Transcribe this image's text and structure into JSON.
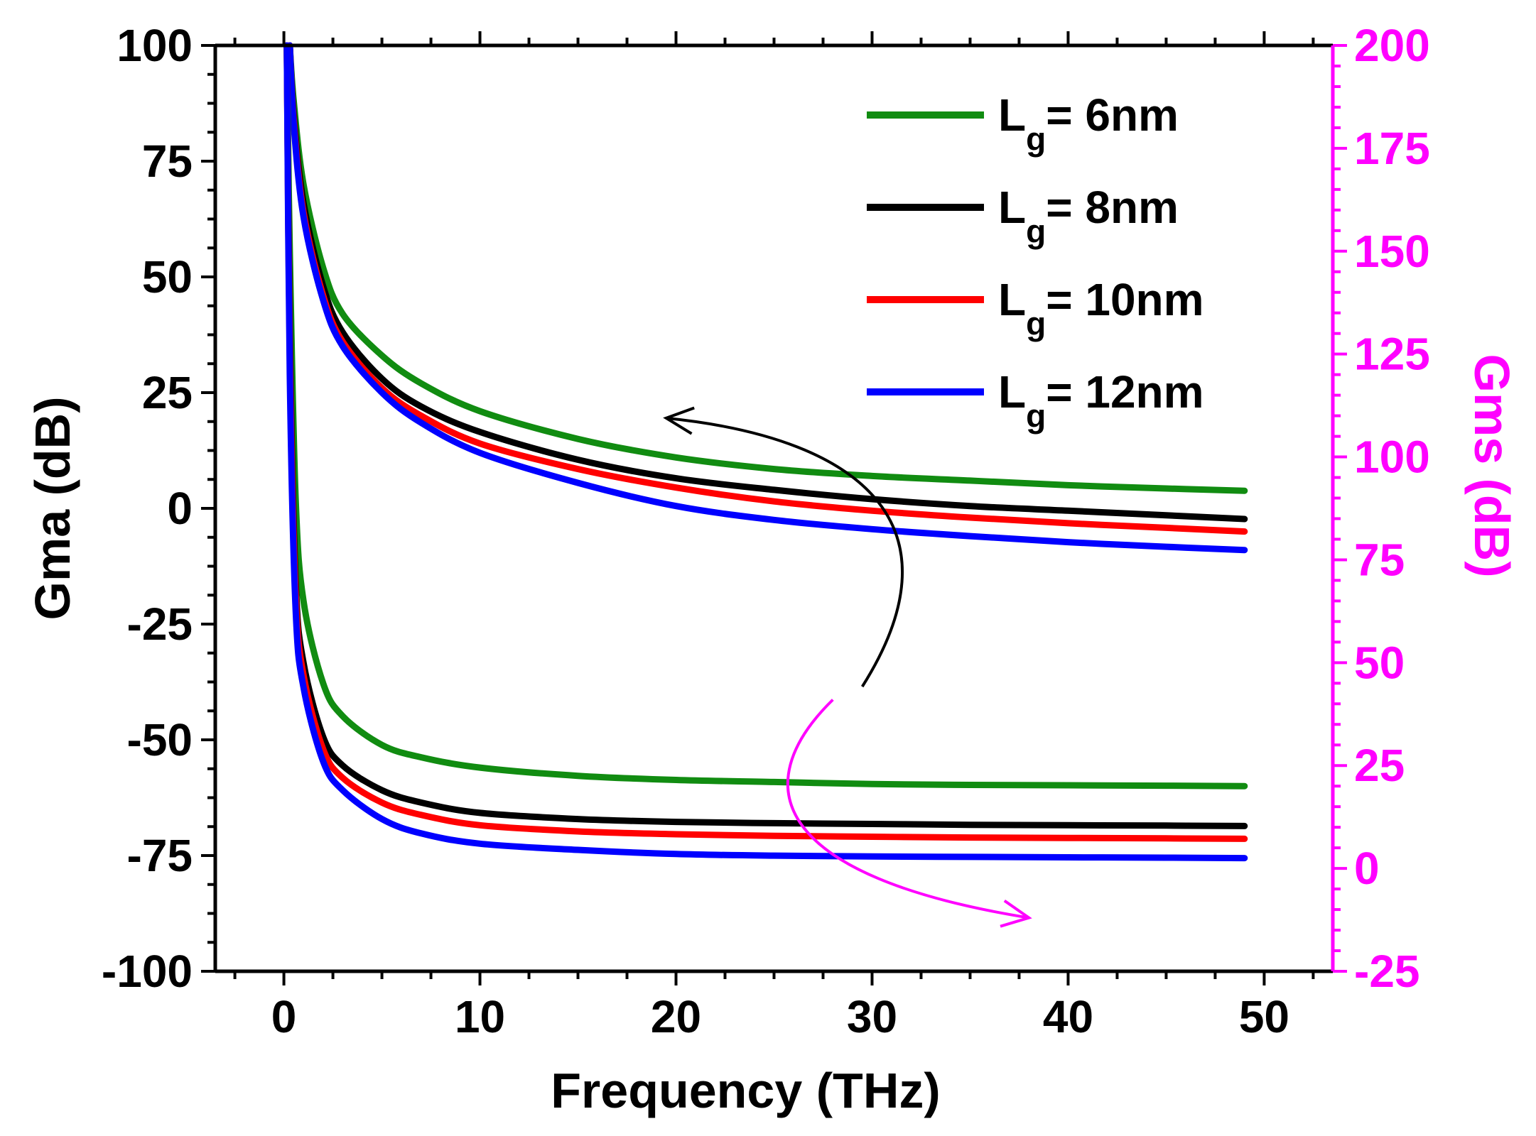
{
  "chart_data": {
    "type": "line",
    "xlabel": "Frequency (THz)",
    "ylabel_left": "Gma (dB)",
    "ylabel_right": "Gms (dB)",
    "xlim": [
      -3.5,
      53.5
    ],
    "ylim_left": [
      -100,
      100
    ],
    "ylim_right": [
      -25,
      200
    ],
    "x_ticks": [
      0,
      10,
      20,
      30,
      40,
      50
    ],
    "y_left_ticks": [
      100,
      75,
      50,
      25,
      0,
      -25,
      -50,
      -75,
      -100
    ],
    "y_right_ticks": [
      200,
      175,
      150,
      125,
      100,
      75,
      50,
      25,
      0,
      -25
    ],
    "grid": false,
    "legend_position": "top-right",
    "colors": {
      "left_axis": "#000000",
      "right_axis": "#ff00ff",
      "gma_arrow": "#000000",
      "gms_arrow": "#ff00ff"
    },
    "legend": [
      {
        "prefix": "L",
        "sub": "g",
        "suffix": "= 6nm",
        "color": "#118c11"
      },
      {
        "prefix": "L",
        "sub": "g",
        "suffix": "= 8nm",
        "color": "#000000"
      },
      {
        "prefix": "L",
        "sub": "g",
        "suffix": "= 10nm",
        "color": "#ff0000"
      },
      {
        "prefix": "L",
        "sub": "g",
        "suffix": "= 12nm",
        "color": "#0000ff"
      }
    ],
    "series": [
      {
        "name": "L_g= 6nm",
        "axis": "left",
        "group": "Gma",
        "color": "#118c11",
        "x": [
          0.3,
          0.5,
          1,
          2,
          3,
          5,
          7,
          10,
          15,
          20,
          25,
          30,
          35,
          40,
          45,
          49
        ],
        "y": [
          100,
          88,
          70,
          52,
          42,
          33,
          27,
          21,
          15,
          11,
          8.5,
          7,
          6,
          5,
          4.3,
          3.8
        ]
      },
      {
        "name": "L_g= 8nm",
        "axis": "left",
        "group": "Gma",
        "color": "#000000",
        "x": [
          0.3,
          0.5,
          1,
          2,
          3,
          5,
          7,
          10,
          15,
          20,
          25,
          30,
          35,
          40,
          45,
          49
        ],
        "y": [
          100,
          85,
          66,
          48,
          38,
          28,
          22,
          16.5,
          10.5,
          6.5,
          4,
          2,
          0.5,
          -0.5,
          -1.5,
          -2.3
        ]
      },
      {
        "name": "L_g= 10nm",
        "axis": "left",
        "group": "Gma",
        "color": "#ff0000",
        "x": [
          0.3,
          0.5,
          1,
          2,
          3,
          5,
          7,
          10,
          15,
          20,
          25,
          30,
          35,
          40,
          45,
          49
        ],
        "y": [
          100,
          84,
          64,
          46,
          36,
          26,
          20,
          14,
          8.5,
          4.5,
          1.5,
          -0.5,
          -2,
          -3.2,
          -4.2,
          -5
        ]
      },
      {
        "name": "L_g= 12nm",
        "axis": "left",
        "group": "Gma",
        "color": "#0000ff",
        "x": [
          0.3,
          0.5,
          1,
          2,
          3,
          5,
          7,
          10,
          15,
          20,
          25,
          30,
          35,
          40,
          45,
          49
        ],
        "y": [
          100,
          83,
          63,
          45,
          35,
          25,
          18.5,
          12,
          5.5,
          0.5,
          -2.5,
          -4.5,
          -6,
          -7.3,
          -8.3,
          -9
        ]
      },
      {
        "name": "L_g= 6nm",
        "axis": "right",
        "group": "Gms",
        "color": "#118c11",
        "x": [
          0.15,
          0.3,
          0.6,
          1,
          2,
          3,
          5,
          7,
          10,
          15,
          20,
          25,
          30,
          35,
          40,
          45,
          49
        ],
        "y": [
          200,
          150,
          90,
          65,
          45,
          37,
          30,
          27,
          24.5,
          22.5,
          21.5,
          21,
          20.5,
          20.3,
          20.2,
          20.1,
          20
        ]
      },
      {
        "name": "L_g= 8nm",
        "axis": "right",
        "group": "Gms",
        "color": "#000000",
        "x": [
          0.15,
          0.3,
          0.6,
          1,
          2,
          3,
          5,
          7,
          10,
          15,
          20,
          25,
          30,
          35,
          40,
          45,
          49
        ],
        "y": [
          200,
          130,
          70,
          50,
          32,
          25,
          19,
          16,
          13.5,
          12,
          11.3,
          11,
          10.8,
          10.6,
          10.5,
          10.4,
          10.3
        ]
      },
      {
        "name": "L_g= 10nm",
        "axis": "right",
        "group": "Gms",
        "color": "#ff0000",
        "x": [
          0.15,
          0.3,
          0.6,
          1,
          2,
          3,
          5,
          7,
          10,
          15,
          20,
          25,
          30,
          35,
          40,
          45,
          49
        ],
        "y": [
          200,
          125,
          67,
          47,
          29,
          22,
          16,
          13,
          10.5,
          9,
          8.3,
          7.9,
          7.7,
          7.5,
          7.4,
          7.3,
          7.2
        ]
      },
      {
        "name": "L_g= 12nm",
        "axis": "right",
        "group": "Gms",
        "color": "#0000ff",
        "x": [
          0.15,
          0.3,
          0.6,
          1,
          2,
          3,
          5,
          7,
          10,
          15,
          20,
          25,
          30,
          35,
          40,
          45,
          49
        ],
        "y": [
          200,
          120,
          63,
          44,
          26,
          19,
          12,
          8.5,
          6,
          4.5,
          3.5,
          3.1,
          2.9,
          2.8,
          2.7,
          2.6,
          2.5
        ]
      }
    ],
    "annotations": [
      {
        "kind": "arrow",
        "group": "Gma",
        "color": "#000000",
        "from": {
          "x": 29.5,
          "y": -38.5
        },
        "via": [
          {
            "x": 34.5,
            "y": -5
          },
          {
            "x": 30,
            "y": 15
          }
        ],
        "to": {
          "x": 19.5,
          "y": 19.5
        }
      },
      {
        "kind": "arrow",
        "group": "Gms",
        "color": "#ff00ff",
        "from": {
          "x": 28,
          "y": 41
        },
        "via": [
          {
            "x": 23.5,
            "y": 20
          },
          {
            "x": 25,
            "y": -2
          }
        ],
        "to": {
          "x": 38,
          "y": -12
        }
      }
    ]
  }
}
